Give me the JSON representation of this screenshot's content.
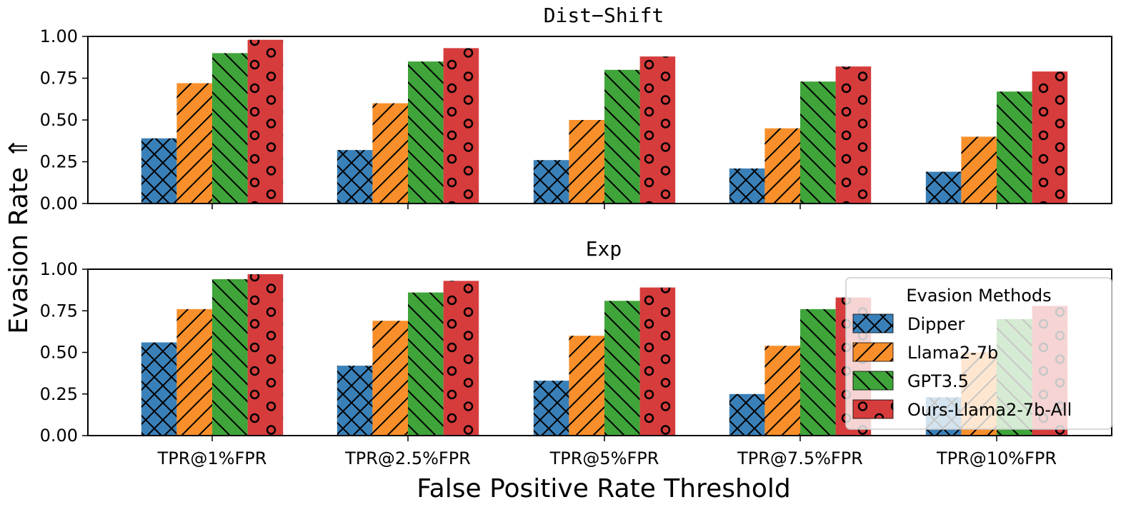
{
  "chart_data": {
    "type": "bar",
    "xlabel": "False Positive Rate Threshold",
    "ylabel": "Evasion Rate  ⇑",
    "categories": [
      "TPR@1%FPR",
      "TPR@2.5%FPR",
      "TPR@5%FPR",
      "TPR@7.5%FPR",
      "TPR@10%FPR"
    ],
    "ylim": [
      0,
      1
    ],
    "yticks": [
      "0.00",
      "0.25",
      "0.50",
      "0.75",
      "1.00"
    ],
    "legend": {
      "title": "Evasion Methods",
      "placement": "right (lower panel)",
      "entries": [
        "Dipper",
        "Llama2-7b",
        "GPT3.5",
        "Ours-Llama2-7b-All"
      ]
    },
    "series_style": [
      {
        "color": "#3a80b8",
        "hatch": "crosshatch"
      },
      {
        "color": "#f98f2a",
        "hatch": "slash"
      },
      {
        "color": "#3fa43a",
        "hatch": "backslash"
      },
      {
        "color": "#d63c3c",
        "hatch": "circles"
      }
    ],
    "panels": [
      {
        "title": "Dist−Shift",
        "series": [
          {
            "name": "Dipper",
            "values": [
              0.39,
              0.32,
              0.26,
              0.21,
              0.19
            ]
          },
          {
            "name": "Llama2-7b",
            "values": [
              0.72,
              0.6,
              0.5,
              0.45,
              0.4
            ]
          },
          {
            "name": "GPT3.5",
            "values": [
              0.9,
              0.85,
              0.8,
              0.73,
              0.67
            ]
          },
          {
            "name": "Ours-Llama2-7b-All",
            "values": [
              0.98,
              0.93,
              0.88,
              0.82,
              0.79
            ]
          }
        ]
      },
      {
        "title": "Exp",
        "series": [
          {
            "name": "Dipper",
            "values": [
              0.56,
              0.42,
              0.33,
              0.25,
              0.23
            ]
          },
          {
            "name": "Llama2-7b",
            "values": [
              0.76,
              0.69,
              0.6,
              0.54,
              0.5
            ]
          },
          {
            "name": "GPT3.5",
            "values": [
              0.94,
              0.86,
              0.81,
              0.76,
              0.7
            ]
          },
          {
            "name": "Ours-Llama2-7b-All",
            "values": [
              0.97,
              0.93,
              0.89,
              0.83,
              0.78
            ]
          }
        ]
      }
    ]
  }
}
